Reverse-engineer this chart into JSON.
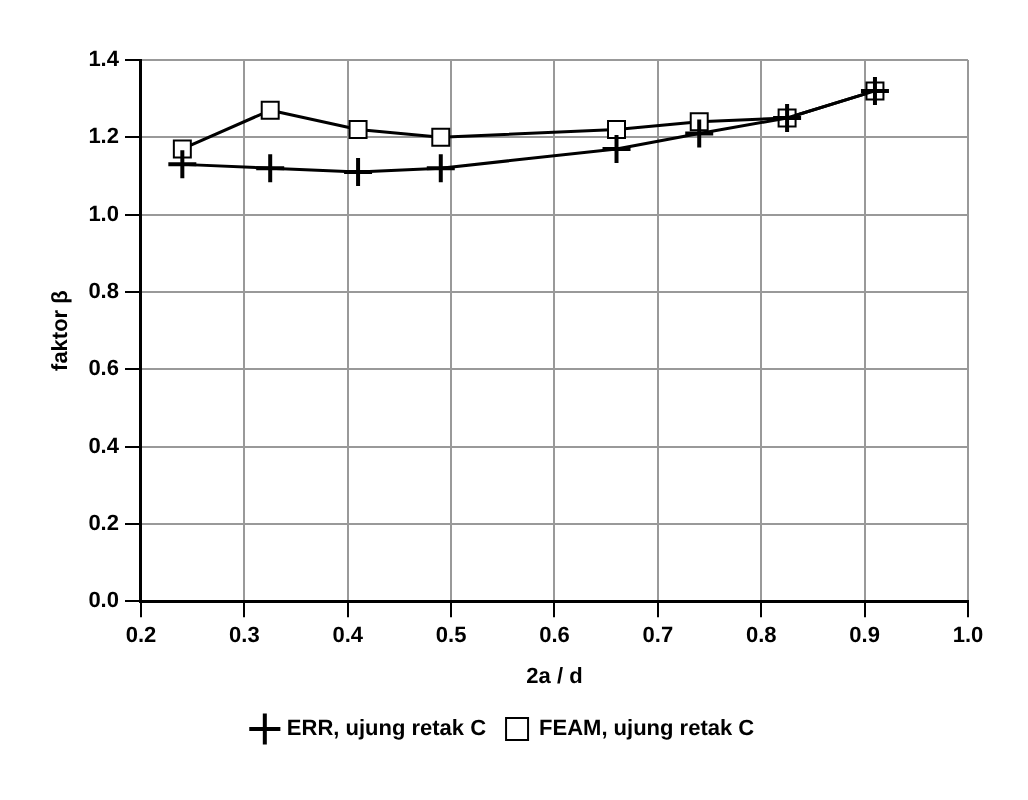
{
  "chart_data": {
    "type": "line",
    "xlabel": "2a / d",
    "ylabel": "faktor β",
    "x": [
      0.24,
      0.325,
      0.41,
      0.49,
      0.66,
      0.74,
      0.825,
      0.91
    ],
    "series": [
      {
        "name": "FEAM, ujung retak C",
        "color": "#000000",
        "marker": "square",
        "values": [
          1.17,
          1.27,
          1.22,
          1.2,
          1.22,
          1.24,
          1.25,
          1.32
        ]
      },
      {
        "name": "ERR, ujung retak C",
        "color": "#000000",
        "marker": "cross",
        "values": [
          1.13,
          1.12,
          1.11,
          1.12,
          1.17,
          1.21,
          1.25,
          1.32
        ]
      }
    ],
    "xlim": [
      0.2,
      1.0
    ],
    "xticks": [
      {
        "value": 0.2,
        "label": "0.2"
      },
      {
        "value": 0.3,
        "label": "0.3"
      },
      {
        "value": 0.4,
        "label": "0.4"
      },
      {
        "value": 0.5,
        "label": "0.5"
      },
      {
        "value": 0.6,
        "label": "0.6"
      },
      {
        "value": 0.7,
        "label": "0.7"
      },
      {
        "value": 0.8,
        "label": "0.8"
      },
      {
        "value": 0.9,
        "label": "0.9"
      },
      {
        "value": 1.0,
        "label": "1.0"
      }
    ],
    "ylim": [
      0,
      1.4
    ],
    "yticks": [
      {
        "value": 0,
        "label": "0.0"
      },
      {
        "value": 0.2,
        "label": "0.2"
      },
      {
        "value": 0.4,
        "label": "0.4"
      },
      {
        "value": 0.6,
        "label": "0.6"
      },
      {
        "value": 0.8,
        "label": "0.8"
      },
      {
        "value": 1.0,
        "label": "1.0"
      },
      {
        "value": 1.2,
        "label": "1.2"
      },
      {
        "value": 1.4,
        "label": "1.4"
      }
    ],
    "grid": true,
    "legend": "bottom"
  }
}
